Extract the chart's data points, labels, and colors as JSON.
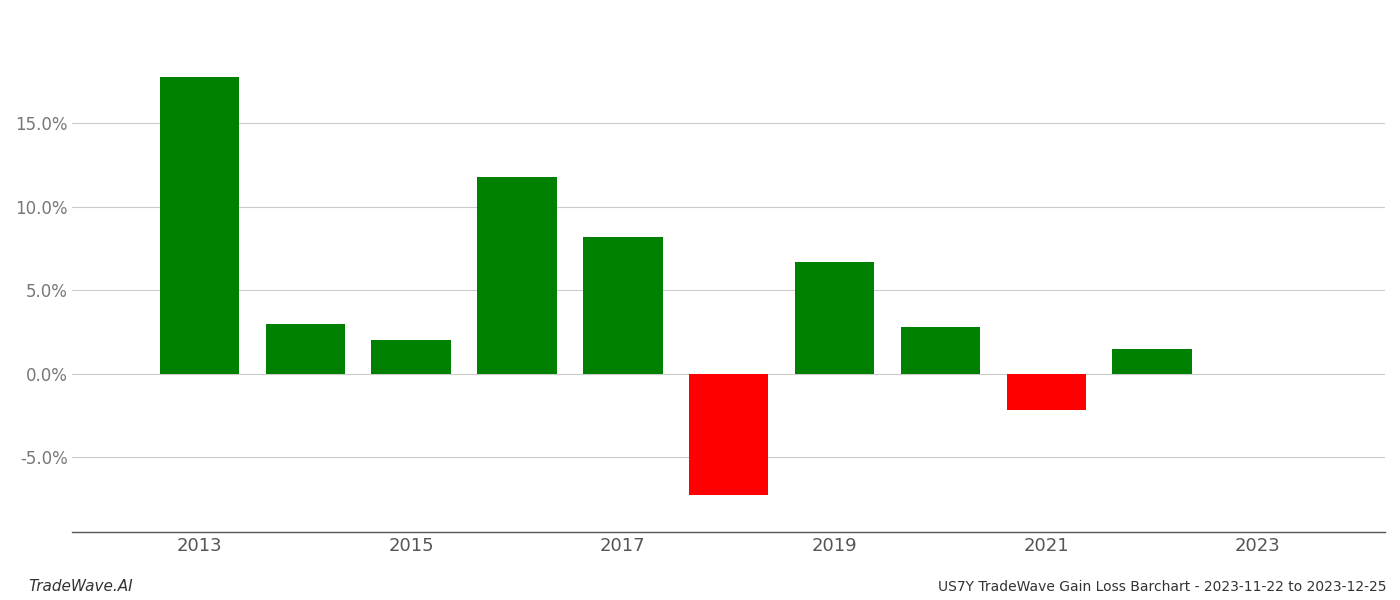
{
  "years": [
    2013,
    2014,
    2015,
    2016,
    2017,
    2018,
    2019,
    2020,
    2021,
    2022,
    2023
  ],
  "values": [
    0.178,
    0.03,
    0.02,
    0.118,
    0.082,
    -0.073,
    0.067,
    0.028,
    -0.022,
    0.015,
    null
  ],
  "bar_colors_pos": "#008000",
  "bar_colors_neg": "#ff0000",
  "background_color": "#ffffff",
  "grid_color": "#cccccc",
  "axis_color": "#555555",
  "title_text": "US7Y TradeWave Gain Loss Barchart - 2023-11-22 to 2023-12-25",
  "watermark_text": "TradeWave.AI",
  "ylim_min": -0.095,
  "ylim_max": 0.215,
  "yticks": [
    -0.05,
    0.0,
    0.05,
    0.1,
    0.15
  ],
  "xtick_labels": [
    "2013",
    "",
    "2015",
    "",
    "2017",
    "",
    "2019",
    "",
    "2021",
    "",
    "2023"
  ],
  "bar_width": 0.75
}
